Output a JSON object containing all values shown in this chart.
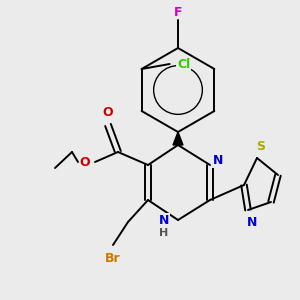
{
  "background_color": "#ebebeb",
  "figsize": [
    3.0,
    3.0
  ],
  "dpi": 100,
  "colors": {
    "bond": "#000000",
    "F": "#cc00cc",
    "Cl": "#33cc00",
    "O": "#cc0000",
    "N": "#0000cc",
    "S": "#aaaa00",
    "Br": "#cc7700",
    "H": "#555555"
  }
}
